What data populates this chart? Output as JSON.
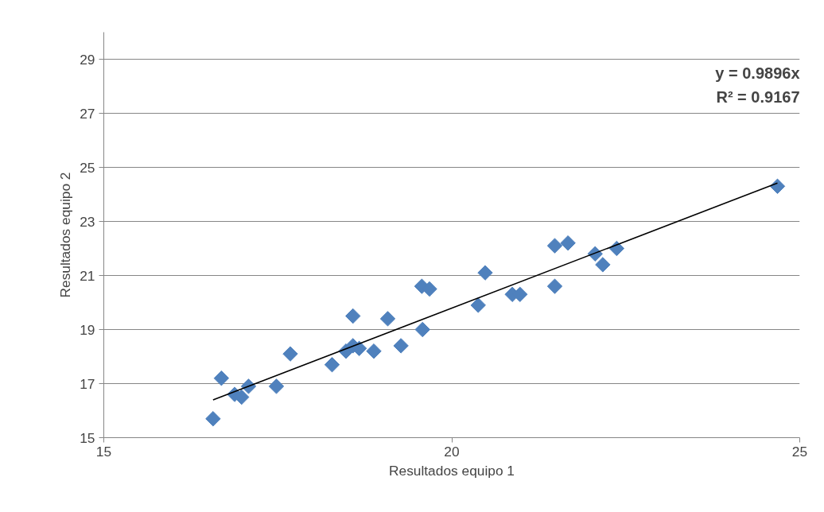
{
  "chart_data": {
    "type": "scatter",
    "xlabel": "Resultados equipo 1",
    "ylabel": "Resultados equipo 2",
    "xlim": [
      15,
      25
    ],
    "ylim": [
      15,
      30
    ],
    "xticks": [
      15,
      20,
      25
    ],
    "yticks": [
      15,
      17,
      19,
      21,
      23,
      25,
      27,
      29
    ],
    "grid": "y",
    "annotations": [
      "y = 0.9896x",
      "R² = 0.9167"
    ],
    "series": [
      {
        "marker": "diamond",
        "color": "#4f81bd",
        "x": [
          16.57,
          16.69,
          16.88,
          16.98,
          17.08,
          17.48,
          17.68,
          18.28,
          18.48,
          18.58,
          18.58,
          18.67,
          18.88,
          19.08,
          19.27,
          19.57,
          19.68,
          19.58,
          20.38,
          20.48,
          20.87,
          20.98,
          21.48,
          21.48,
          21.67,
          22.06,
          22.17,
          22.37,
          24.68
        ],
        "values": [
          15.7,
          17.2,
          16.6,
          16.5,
          16.9,
          16.9,
          18.1,
          17.7,
          18.2,
          19.5,
          18.4,
          18.3,
          18.2,
          19.4,
          18.4,
          20.6,
          20.5,
          19.0,
          19.9,
          21.1,
          20.3,
          20.3,
          20.6,
          22.1,
          22.2,
          21.8,
          21.4,
          22.0,
          24.3
        ]
      },
      {
        "type": "line",
        "color": "#000000",
        "x": [
          16.57,
          24.68
        ],
        "values": [
          16.4,
          24.42
        ]
      }
    ]
  }
}
